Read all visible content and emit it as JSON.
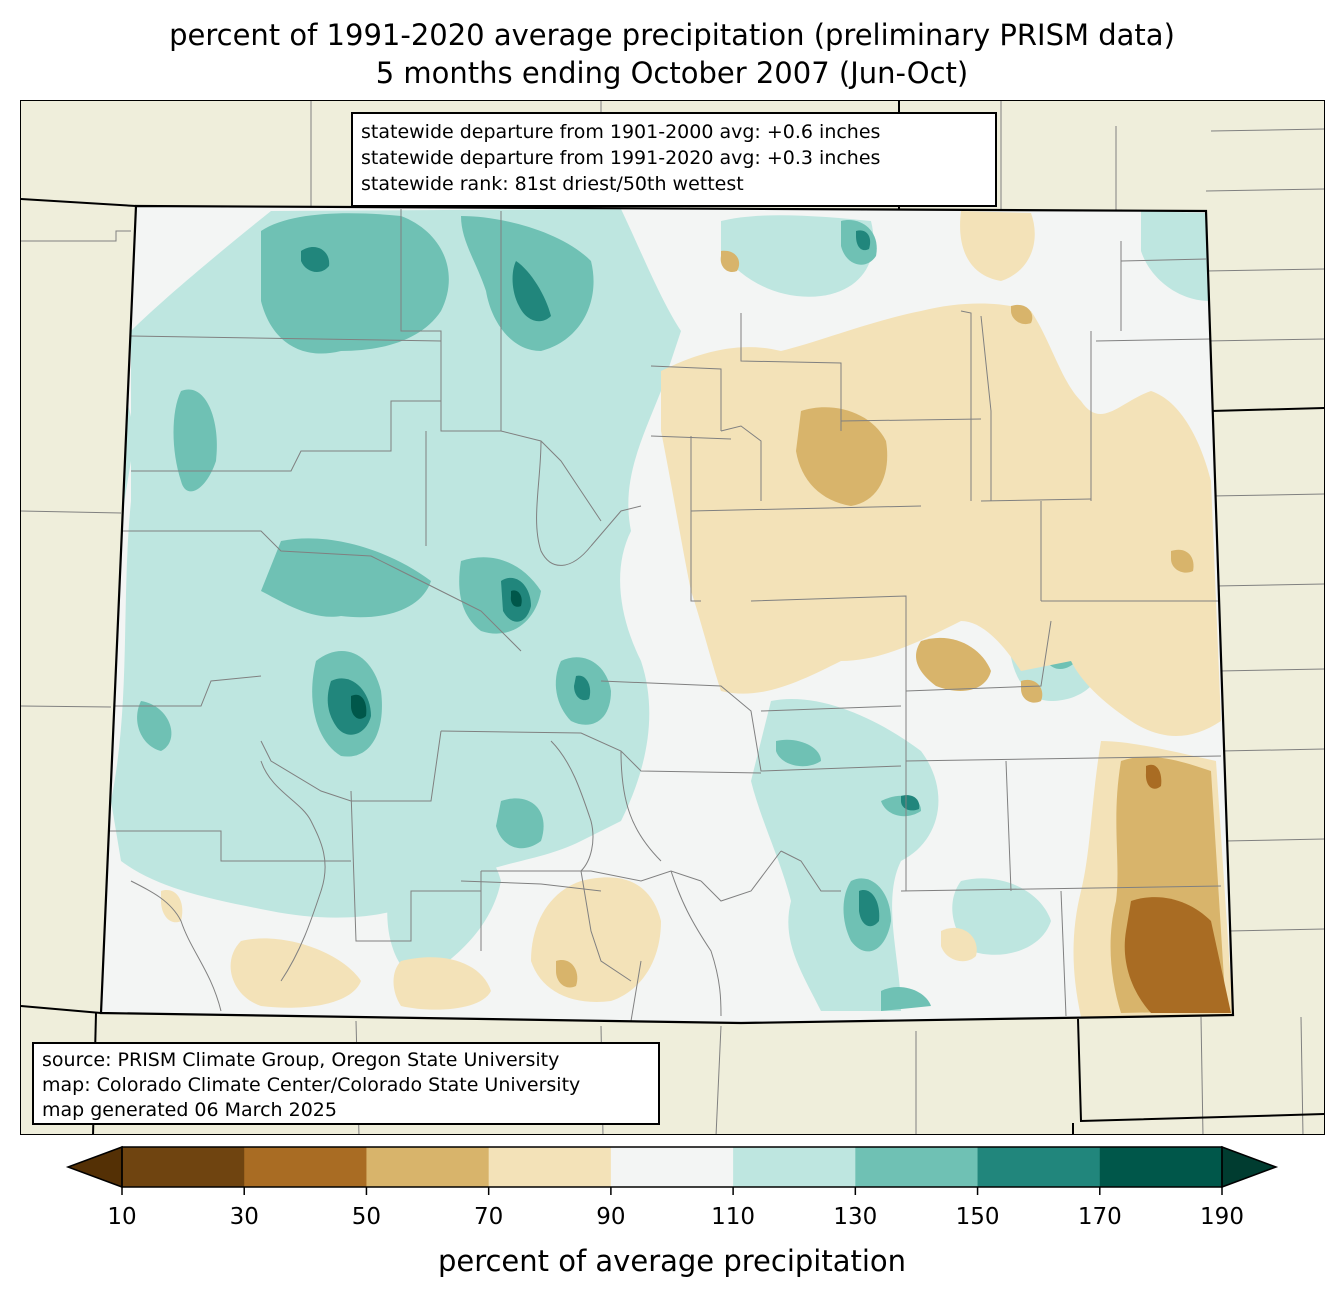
{
  "title": {
    "line1": "percent of 1991-2020 average precipitation (preliminary PRISM data)",
    "line2": "5 months ending October 2007 (Jun-Oct)"
  },
  "stats": {
    "line1": "statewide departure from 1901-2000 avg: +0.6 inches",
    "line2": "statewide departure from 1991-2020 avg: +0.3 inches",
    "line3": "statewide rank: 81st driest/50th wettest"
  },
  "source": {
    "line1": "source: PRISM Climate Group, Oregon State University",
    "line2": "map: Colorado Climate Center/Colorado State University",
    "line3": "map generated 06 March 2025"
  },
  "colorbar": {
    "label": "percent of average precipitation",
    "ticks": [
      "10",
      "30",
      "50",
      "70",
      "90",
      "110",
      "130",
      "150",
      "170",
      "190"
    ],
    "colors": [
      "#6f4410",
      "#a96c23",
      "#d8b46b",
      "#f3e2b8",
      "#f3f5f4",
      "#bee6e0",
      "#6fc1b4",
      "#21867c",
      "#00574a"
    ],
    "under_color": "#543005",
    "over_color": "#003c30"
  },
  "colors": {
    "background_land": "#efeedb",
    "state_border": "#000000",
    "county_border": "#808080"
  }
}
